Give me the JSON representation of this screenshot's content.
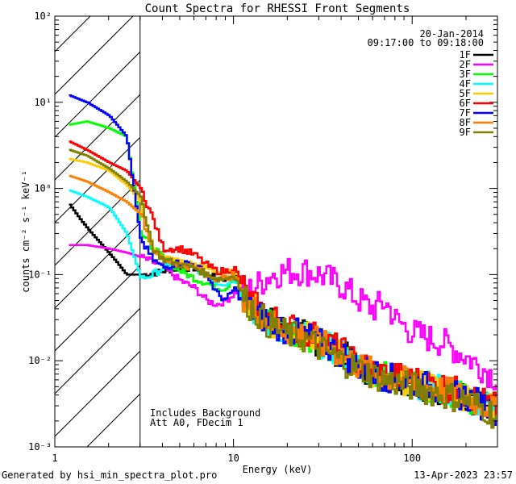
{
  "chart_data": {
    "type": "line",
    "title": "Count Spectra for RHESSI Front Segments",
    "xlabel": "Energy (keV)",
    "ylabel": "counts cm⁻² s⁻¹ keV⁻¹",
    "xscale": "log",
    "yscale": "log",
    "xlim": [
      1,
      300
    ],
    "ylim": [
      0.001,
      100
    ],
    "x_ticks": [
      1,
      10,
      100
    ],
    "x_tick_labels": [
      "1",
      "10",
      "100"
    ],
    "y_ticks": [
      0.001,
      0.01,
      0.1,
      1,
      10,
      100
    ],
    "y_tick_labels": [
      "10⁻³",
      "10⁻²",
      "10⁻¹",
      "10⁰",
      "10¹",
      "10²"
    ],
    "hatched_region_keV": [
      1,
      3
    ],
    "date": "20-Jan-2014",
    "time_range": "09:17:00 to 09:18:00",
    "annotations": [
      "Includes Background",
      "Att A0, FDecim 1"
    ],
    "legend_position": "top-right",
    "series": [
      {
        "name": "1F",
        "color": "#000000",
        "x": [
          1.2,
          1.4,
          1.6,
          1.9,
          2.2,
          2.5,
          2.8,
          3.2,
          4,
          5,
          6,
          7,
          8,
          9,
          10,
          11,
          12,
          15,
          20,
          25,
          30,
          40,
          50,
          70,
          100,
          150,
          200,
          250,
          300
        ],
        "y": [
          0.65,
          0.42,
          0.3,
          0.2,
          0.14,
          0.1,
          0.1,
          0.1,
          0.11,
          0.12,
          0.12,
          0.1,
          0.09,
          0.09,
          0.1,
          0.07,
          0.05,
          0.03,
          0.022,
          0.02,
          0.016,
          0.012,
          0.0085,
          0.0065,
          0.0055,
          0.0045,
          0.0038,
          0.003,
          0.0025
        ]
      },
      {
        "name": "2F",
        "color": "#ff00ff",
        "x": [
          1.2,
          1.5,
          2,
          2.5,
          3,
          3.5,
          4,
          5,
          6,
          7,
          8,
          9,
          10,
          11,
          12,
          14,
          16,
          20,
          25,
          30,
          40,
          50,
          60,
          70,
          80,
          100,
          150,
          200,
          250,
          300
        ],
        "y": [
          0.22,
          0.22,
          0.2,
          0.18,
          0.16,
          0.14,
          0.12,
          0.085,
          0.07,
          0.05,
          0.045,
          0.05,
          0.06,
          0.07,
          0.065,
          0.08,
          0.1,
          0.11,
          0.11,
          0.1,
          0.075,
          0.05,
          0.04,
          0.048,
          0.03,
          0.021,
          0.016,
          0.011,
          0.008,
          0.006
        ]
      },
      {
        "name": "3F",
        "color": "#00ff00",
        "x": [
          1.2,
          1.5,
          2,
          2.5,
          3,
          3.5,
          4,
          5,
          6,
          7,
          8,
          9,
          10,
          11,
          12,
          15,
          20,
          25,
          30,
          40,
          50,
          70,
          100,
          150,
          200,
          250,
          300
        ],
        "y": [
          5.5,
          6,
          5,
          4,
          0.3,
          0.2,
          0.16,
          0.11,
          0.09,
          0.08,
          0.07,
          0.07,
          0.1,
          0.06,
          0.04,
          0.03,
          0.022,
          0.02,
          0.016,
          0.012,
          0.0085,
          0.0065,
          0.0055,
          0.0045,
          0.0038,
          0.003,
          0.0025
        ]
      },
      {
        "name": "4F",
        "color": "#00ffff",
        "x": [
          1.2,
          1.5,
          2,
          2.5,
          3,
          3.5,
          4,
          5,
          6,
          7,
          8,
          9,
          10,
          11,
          12,
          15,
          20,
          25,
          30,
          40,
          50,
          70,
          100,
          150,
          200,
          250,
          300
        ],
        "y": [
          0.95,
          0.8,
          0.6,
          0.3,
          0.09,
          0.1,
          0.12,
          0.13,
          0.12,
          0.1,
          0.08,
          0.08,
          0.09,
          0.06,
          0.045,
          0.028,
          0.022,
          0.02,
          0.016,
          0.012,
          0.0085,
          0.0065,
          0.0055,
          0.0045,
          0.0038,
          0.003,
          0.0025
        ]
      },
      {
        "name": "5F",
        "color": "#ffcc00",
        "x": [
          1.2,
          1.5,
          2,
          2.5,
          3,
          3.5,
          4,
          5,
          6,
          7,
          8,
          9,
          10,
          11,
          12,
          15,
          20,
          25,
          30,
          40,
          50,
          70,
          100,
          150,
          200,
          250,
          300
        ],
        "y": [
          2.2,
          2,
          1.6,
          1.1,
          0.7,
          0.2,
          0.16,
          0.14,
          0.13,
          0.12,
          0.11,
          0.1,
          0.11,
          0.07,
          0.05,
          0.03,
          0.022,
          0.02,
          0.016,
          0.012,
          0.0085,
          0.0065,
          0.0055,
          0.0045,
          0.0038,
          0.003,
          0.0025
        ]
      },
      {
        "name": "6F",
        "color": "#ff0000",
        "x": [
          1.2,
          1.5,
          2,
          2.5,
          3,
          3.5,
          4,
          5,
          6,
          7,
          8,
          9,
          10,
          11,
          12,
          15,
          20,
          25,
          30,
          40,
          50,
          70,
          100,
          150,
          200,
          250,
          300
        ],
        "y": [
          3.5,
          2.8,
          2,
          1.6,
          1,
          0.45,
          0.2,
          0.2,
          0.17,
          0.13,
          0.11,
          0.11,
          0.12,
          0.08,
          0.05,
          0.035,
          0.025,
          0.022,
          0.018,
          0.013,
          0.009,
          0.007,
          0.006,
          0.005,
          0.004,
          0.0033,
          0.0028
        ]
      },
      {
        "name": "7F",
        "color": "#0000ff",
        "x": [
          1.2,
          1.5,
          2,
          2.5,
          3,
          3.5,
          4,
          5,
          6,
          7,
          8,
          9,
          10,
          11,
          12,
          15,
          20,
          25,
          30,
          40,
          50,
          70,
          100,
          150,
          200,
          250,
          300
        ],
        "y": [
          12,
          10,
          7,
          4,
          0.25,
          0.15,
          0.12,
          0.14,
          0.13,
          0.1,
          0.06,
          0.05,
          0.07,
          0.05,
          0.04,
          0.03,
          0.022,
          0.02,
          0.016,
          0.012,
          0.0085,
          0.0065,
          0.0055,
          0.0045,
          0.0038,
          0.003,
          0.0025
        ]
      },
      {
        "name": "8F",
        "color": "#ff8000",
        "x": [
          1.2,
          1.5,
          2,
          2.5,
          3,
          3.5,
          4,
          5,
          6,
          7,
          8,
          9,
          10,
          11,
          12,
          15,
          20,
          25,
          30,
          40,
          50,
          70,
          100,
          150,
          200,
          250,
          300
        ],
        "y": [
          1.4,
          1.2,
          0.9,
          0.7,
          0.5,
          0.2,
          0.15,
          0.13,
          0.12,
          0.1,
          0.09,
          0.09,
          0.1,
          0.06,
          0.045,
          0.03,
          0.022,
          0.02,
          0.016,
          0.012,
          0.0085,
          0.0065,
          0.0055,
          0.0045,
          0.0038,
          0.003,
          0.0025
        ]
      },
      {
        "name": "9F",
        "color": "#808000",
        "x": [
          1.2,
          1.5,
          2,
          2.5,
          3,
          3.5,
          4,
          5,
          6,
          7,
          8,
          9,
          10,
          11,
          12,
          15,
          20,
          25,
          30,
          40,
          50,
          70,
          100,
          150,
          200,
          250,
          300
        ],
        "y": [
          2.8,
          2.4,
          1.7,
          1.2,
          0.8,
          0.2,
          0.15,
          0.13,
          0.12,
          0.1,
          0.09,
          0.09,
          0.1,
          0.06,
          0.045,
          0.028,
          0.02,
          0.018,
          0.014,
          0.01,
          0.008,
          0.006,
          0.005,
          0.004,
          0.0035,
          0.0028,
          0.0022
        ]
      }
    ]
  },
  "footer": {
    "generator": "Generated by hsi_min_spectra_plot.pro",
    "timestamp": "13-Apr-2023 23:57"
  }
}
